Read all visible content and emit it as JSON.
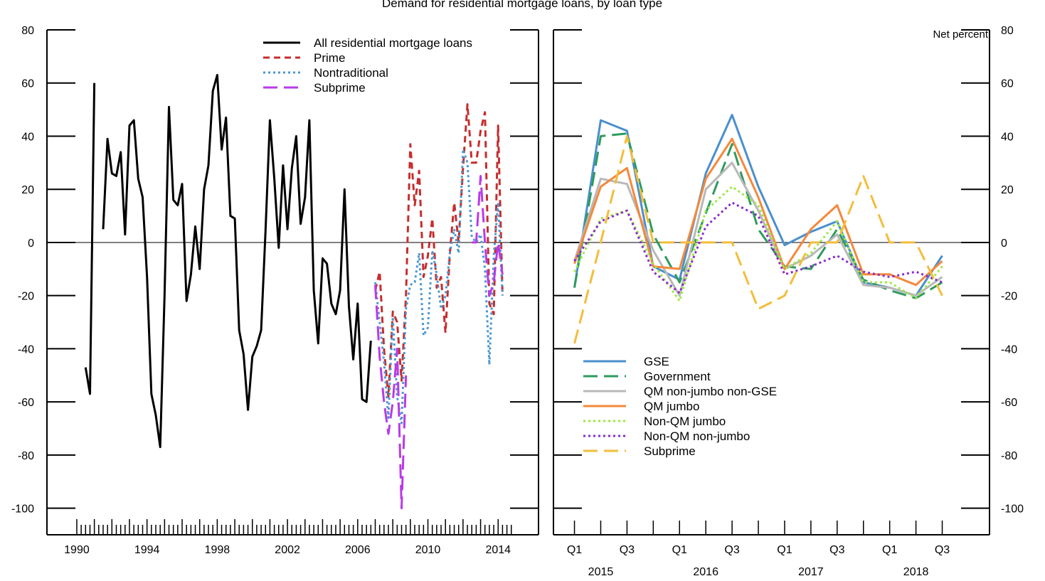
{
  "header": {
    "title": "Demand for residential mortgage loans, by loan type",
    "units": "Net percent"
  },
  "chart_data": [
    {
      "type": "line",
      "panel": "left",
      "x_unit": "year",
      "xlim": [
        1988.3,
        2016.3
      ],
      "ylim": [
        -110,
        80
      ],
      "yticks": [
        -100,
        -80,
        -60,
        -40,
        -20,
        0,
        20,
        40,
        60,
        80
      ],
      "xticks": [
        1990,
        1994,
        1998,
        2002,
        2006,
        2010,
        2014
      ],
      "xtick_labels": [
        "1990",
        "1994",
        "1998",
        "2002",
        "2006",
        "2010",
        "2014"
      ],
      "zero_line": true,
      "legend": "top-center",
      "series": [
        {
          "name": "All residential mortgage loans",
          "color": "#000000",
          "dash": "solid",
          "points": [
            [
              1990.5,
              -47
            ],
            [
              1990.75,
              -57
            ],
            [
              1991.0,
              60
            ],
            [
              1991.25,
              null
            ],
            [
              1991.5,
              5
            ],
            [
              1991.75,
              39
            ],
            [
              1992.0,
              26
            ],
            [
              1992.25,
              25
            ],
            [
              1992.5,
              34
            ],
            [
              1992.75,
              3
            ],
            [
              1993.0,
              44
            ],
            [
              1993.25,
              46
            ],
            [
              1993.5,
              24
            ],
            [
              1993.75,
              17
            ],
            [
              1994.0,
              -13
            ],
            [
              1994.25,
              -57
            ],
            [
              1994.5,
              -65
            ],
            [
              1994.75,
              -77
            ],
            [
              1995.0,
              -20
            ],
            [
              1995.25,
              51
            ],
            [
              1995.5,
              16
            ],
            [
              1995.75,
              14
            ],
            [
              1996.0,
              22
            ],
            [
              1996.25,
              -22
            ],
            [
              1996.5,
              -12
            ],
            [
              1996.75,
              6
            ],
            [
              1997.0,
              -10
            ],
            [
              1997.25,
              20
            ],
            [
              1997.5,
              29
            ],
            [
              1997.75,
              57
            ],
            [
              1998.0,
              63
            ],
            [
              1998.25,
              35
            ],
            [
              1998.5,
              47
            ],
            [
              1998.75,
              10
            ],
            [
              1999.0,
              9
            ],
            [
              1999.25,
              -33
            ],
            [
              1999.5,
              -42
            ],
            [
              1999.75,
              -63
            ],
            [
              2000.0,
              -43
            ],
            [
              2000.25,
              -39
            ],
            [
              2000.5,
              -33
            ],
            [
              2000.75,
              4
            ],
            [
              2001.0,
              46
            ],
            [
              2001.25,
              24
            ],
            [
              2001.5,
              -2
            ],
            [
              2001.75,
              29
            ],
            [
              2002.0,
              5
            ],
            [
              2002.25,
              28
            ],
            [
              2002.5,
              40
            ],
            [
              2002.75,
              7
            ],
            [
              2003.0,
              17
            ],
            [
              2003.25,
              46
            ],
            [
              2003.5,
              -18
            ],
            [
              2003.75,
              -38
            ],
            [
              2004.0,
              -6
            ],
            [
              2004.25,
              -8
            ],
            [
              2004.5,
              -23
            ],
            [
              2004.75,
              -27
            ],
            [
              2005.0,
              -18
            ],
            [
              2005.25,
              20
            ],
            [
              2005.5,
              -24
            ],
            [
              2005.75,
              -44
            ],
            [
              2006.0,
              -23
            ],
            [
              2006.25,
              -59
            ],
            [
              2006.5,
              -60
            ],
            [
              2006.75,
              -37
            ]
          ]
        },
        {
          "name": "Prime",
          "color": "#c62d2d",
          "dash": "dashed",
          "points": [
            [
              2007.0,
              -18
            ],
            [
              2007.25,
              -11
            ],
            [
              2007.5,
              -40
            ],
            [
              2007.75,
              -58
            ],
            [
              2008.0,
              -26
            ],
            [
              2008.25,
              -30
            ],
            [
              2008.5,
              -52
            ],
            [
              2008.75,
              -20
            ],
            [
              2009.0,
              37
            ],
            [
              2009.25,
              14
            ],
            [
              2009.5,
              27
            ],
            [
              2009.75,
              -13
            ],
            [
              2010.0,
              -5
            ],
            [
              2010.25,
              9
            ],
            [
              2010.5,
              -17
            ],
            [
              2010.75,
              -13
            ],
            [
              2011.0,
              -34
            ],
            [
              2011.25,
              -4
            ],
            [
              2011.5,
              15
            ],
            [
              2011.75,
              0
            ],
            [
              2012.0,
              28
            ],
            [
              2012.25,
              52
            ],
            [
              2012.5,
              30
            ],
            [
              2012.75,
              30
            ],
            [
              2013.0,
              42
            ],
            [
              2013.25,
              49
            ],
            [
              2013.5,
              -23
            ],
            [
              2013.75,
              -27
            ],
            [
              2014.0,
              44
            ],
            [
              2014.25,
              -20
            ]
          ]
        },
        {
          "name": "Nontraditional",
          "color": "#4a97d0",
          "dash": "dotted",
          "points": [
            [
              2007.0,
              -15
            ],
            [
              2007.25,
              -30
            ],
            [
              2007.5,
              -45
            ],
            [
              2007.75,
              -66
            ],
            [
              2008.0,
              -28
            ],
            [
              2008.25,
              -58
            ],
            [
              2008.5,
              -68
            ],
            [
              2008.75,
              -25
            ],
            [
              2009.0,
              -16
            ],
            [
              2009.25,
              -15
            ],
            [
              2009.5,
              -4
            ],
            [
              2009.75,
              -35
            ],
            [
              2010.0,
              -32
            ],
            [
              2010.25,
              -3
            ],
            [
              2010.5,
              -12
            ],
            [
              2010.75,
              -25
            ],
            [
              2011.0,
              -20
            ],
            [
              2011.25,
              -4
            ],
            [
              2011.5,
              5
            ],
            [
              2011.75,
              -4
            ],
            [
              2012.0,
              35
            ],
            [
              2012.25,
              30
            ],
            [
              2012.5,
              2
            ],
            [
              2012.75,
              0
            ],
            [
              2013.0,
              3
            ],
            [
              2013.25,
              -10
            ],
            [
              2013.5,
              -46
            ],
            [
              2013.75,
              -5
            ],
            [
              2014.0,
              15
            ],
            [
              2014.25,
              -20
            ]
          ]
        },
        {
          "name": "Subprime",
          "color": "#b93ae8",
          "dash": "longdash",
          "points": [
            [
              2007.0,
              -16
            ],
            [
              2007.25,
              -43
            ],
            [
              2007.5,
              -60
            ],
            [
              2007.75,
              -72
            ],
            [
              2008.0,
              -60
            ],
            [
              2008.25,
              -40
            ],
            [
              2008.5,
              -100
            ],
            [
              2008.75,
              -50
            ],
            [
              2009.0,
              null
            ],
            [
              2012.5,
              0
            ],
            [
              2012.75,
              0
            ],
            [
              2013.0,
              25
            ],
            [
              2013.25,
              0
            ],
            [
              2013.5,
              -20
            ],
            [
              2013.75,
              -15
            ],
            [
              2014.0,
              0
            ],
            [
              2014.25,
              -12
            ]
          ]
        }
      ]
    },
    {
      "type": "line",
      "panel": "right",
      "x_unit": "quarter",
      "categories": [
        "2015 Q1",
        "2015 Q2",
        "2015 Q3",
        "2015 Q4",
        "2016 Q1",
        "2016 Q2",
        "2016 Q3",
        "2016 Q4",
        "2017 Q1",
        "2017 Q2",
        "2017 Q3",
        "2017 Q4",
        "2018 Q1",
        "2018 Q2",
        "2018 Q3"
      ],
      "xtick_labels": [
        "Q1",
        "",
        "Q3",
        "",
        "Q1",
        "",
        "Q3",
        "",
        "Q1",
        "",
        "Q3",
        "",
        "Q1",
        "",
        "Q3"
      ],
      "year_labels": [
        {
          "label": "2015",
          "at": 2015.25
        },
        {
          "label": "2016",
          "at": 2016.25
        },
        {
          "label": "2017",
          "at": 2017.25
        },
        {
          "label": "2018",
          "at": 2018.25
        }
      ],
      "xlim": [
        2014.8,
        2018.95
      ],
      "ylim": [
        -110,
        80
      ],
      "yticks": [
        -100,
        -80,
        -60,
        -40,
        -20,
        0,
        20,
        40,
        60,
        80
      ],
      "zero_line": true,
      "legend": "bottom-left",
      "series": [
        {
          "name": "GSE",
          "color": "#4a8fcd",
          "dash": "solid",
          "values": [
            -17,
            46,
            42,
            -9,
            -14,
            26,
            48,
            21,
            -1,
            4,
            8,
            -15,
            -17,
            -20,
            -5
          ]
        },
        {
          "name": "Government",
          "color": "#2e9b5e",
          "dash": "longdash",
          "values": [
            -17,
            40,
            41,
            3,
            -15,
            11,
            37,
            5,
            -9,
            -10,
            5,
            -14,
            -18,
            -21,
            -15
          ]
        },
        {
          "name": "QM non-jumbo non-GSE",
          "color": "#b8b8b8",
          "dash": "solid",
          "values": [
            -7,
            24,
            22,
            -3,
            -20,
            20,
            30,
            12,
            -10,
            -5,
            3,
            -16,
            -17,
            -20,
            -13
          ]
        },
        {
          "name": "QM jumbo",
          "color": "#f5883b",
          "dash": "solid",
          "values": [
            -8,
            21,
            28,
            -9,
            -10,
            24,
            39,
            17,
            -10,
            5,
            14,
            -12,
            -12,
            -16,
            -7
          ]
        },
        {
          "name": "Non-QM jumbo",
          "color": "#9ee843",
          "dash": "dotted",
          "values": [
            -11,
            9,
            12,
            -8,
            -22,
            12,
            21,
            14,
            -10,
            -4,
            8,
            -15,
            -15,
            -21,
            -9
          ]
        },
        {
          "name": "Non-QM non-jumbo",
          "color": "#8a2cc9",
          "dash": "dotted",
          "values": [
            -7,
            8,
            12,
            -11,
            -19,
            6,
            15,
            10,
            -12,
            -9,
            -5,
            -11,
            -13,
            -11,
            -15
          ]
        },
        {
          "name": "Subprime",
          "color": "#f4bd3a",
          "dash": "longdash",
          "values": [
            -38,
            0,
            40,
            0,
            0,
            0,
            0,
            -25,
            -20,
            0,
            0,
            25,
            0,
            0,
            -20
          ]
        }
      ]
    }
  ]
}
